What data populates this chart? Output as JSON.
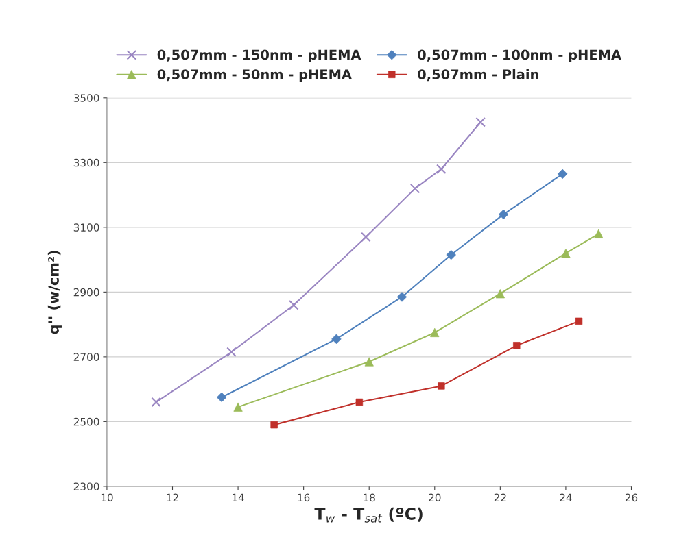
{
  "chart_data": {
    "type": "line",
    "xlabel": "T$_{w}$ - T$_{sat}$ (ºC)",
    "ylabel": "q'' (w/cm²)",
    "xlim": [
      10,
      26
    ],
    "xticks": [
      10,
      12,
      14,
      16,
      18,
      20,
      22,
      24,
      26
    ],
    "ylim": [
      2300,
      3500
    ],
    "yticks": [
      2300,
      2500,
      2700,
      2900,
      3100,
      3300,
      3500
    ],
    "grid": "y",
    "legend": "top",
    "series": [
      {
        "name": "0,507mm - 150nm - pHEMA",
        "color": "#9a86c2",
        "marker": "cross",
        "x": [
          11.5,
          13.8,
          15.7,
          17.9,
          19.4,
          20.2,
          21.4
        ],
        "values": [
          2560,
          2715,
          2860,
          3070,
          3220,
          3280,
          3425
        ]
      },
      {
        "name": "0,507mm - 100nm - pHEMA",
        "color": "#4f81bd",
        "marker": "diamond",
        "x": [
          13.5,
          17.0,
          19.0,
          20.5,
          22.1,
          23.9
        ],
        "values": [
          2575,
          2755,
          2885,
          3015,
          3140,
          3265
        ]
      },
      {
        "name": "0,507mm - 50nm - pHEMA",
        "color": "#9bbb59",
        "marker": "triangle",
        "x": [
          14.0,
          18.0,
          20.0,
          22.0,
          24.0,
          25.0
        ],
        "values": [
          2545,
          2685,
          2775,
          2895,
          3020,
          3080
        ]
      },
      {
        "name": "0,507mm - Plain",
        "color": "#c0302a",
        "marker": "square",
        "x": [
          15.1,
          17.7,
          20.2,
          22.5,
          24.4
        ],
        "values": [
          2490,
          2560,
          2610,
          2735,
          2810
        ]
      }
    ]
  }
}
